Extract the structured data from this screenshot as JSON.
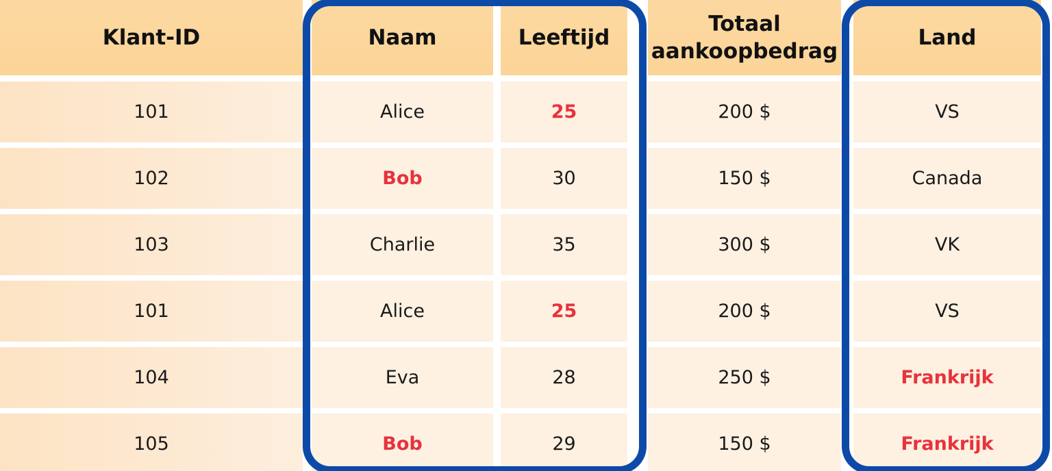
{
  "table": {
    "header": [
      "Klant-ID",
      "Naam",
      "Leeftijd",
      "Totaal aankoopbedrag",
      "Land"
    ],
    "rows": [
      [
        "101",
        "Alice",
        "25",
        "200 $",
        "VS"
      ],
      [
        "102",
        "Bob",
        "30",
        "150 $",
        "Canada"
      ],
      [
        "103",
        "Charlie",
        "35",
        "300 $",
        "VK"
      ],
      [
        "101",
        "Alice",
        "25",
        "200 $",
        "VS"
      ],
      [
        "104",
        "Eva",
        "28",
        "250 $",
        "Frankrijk"
      ],
      [
        "105",
        "Bob",
        "29",
        "150 $",
        "Frankrijk"
      ]
    ]
  }
}
